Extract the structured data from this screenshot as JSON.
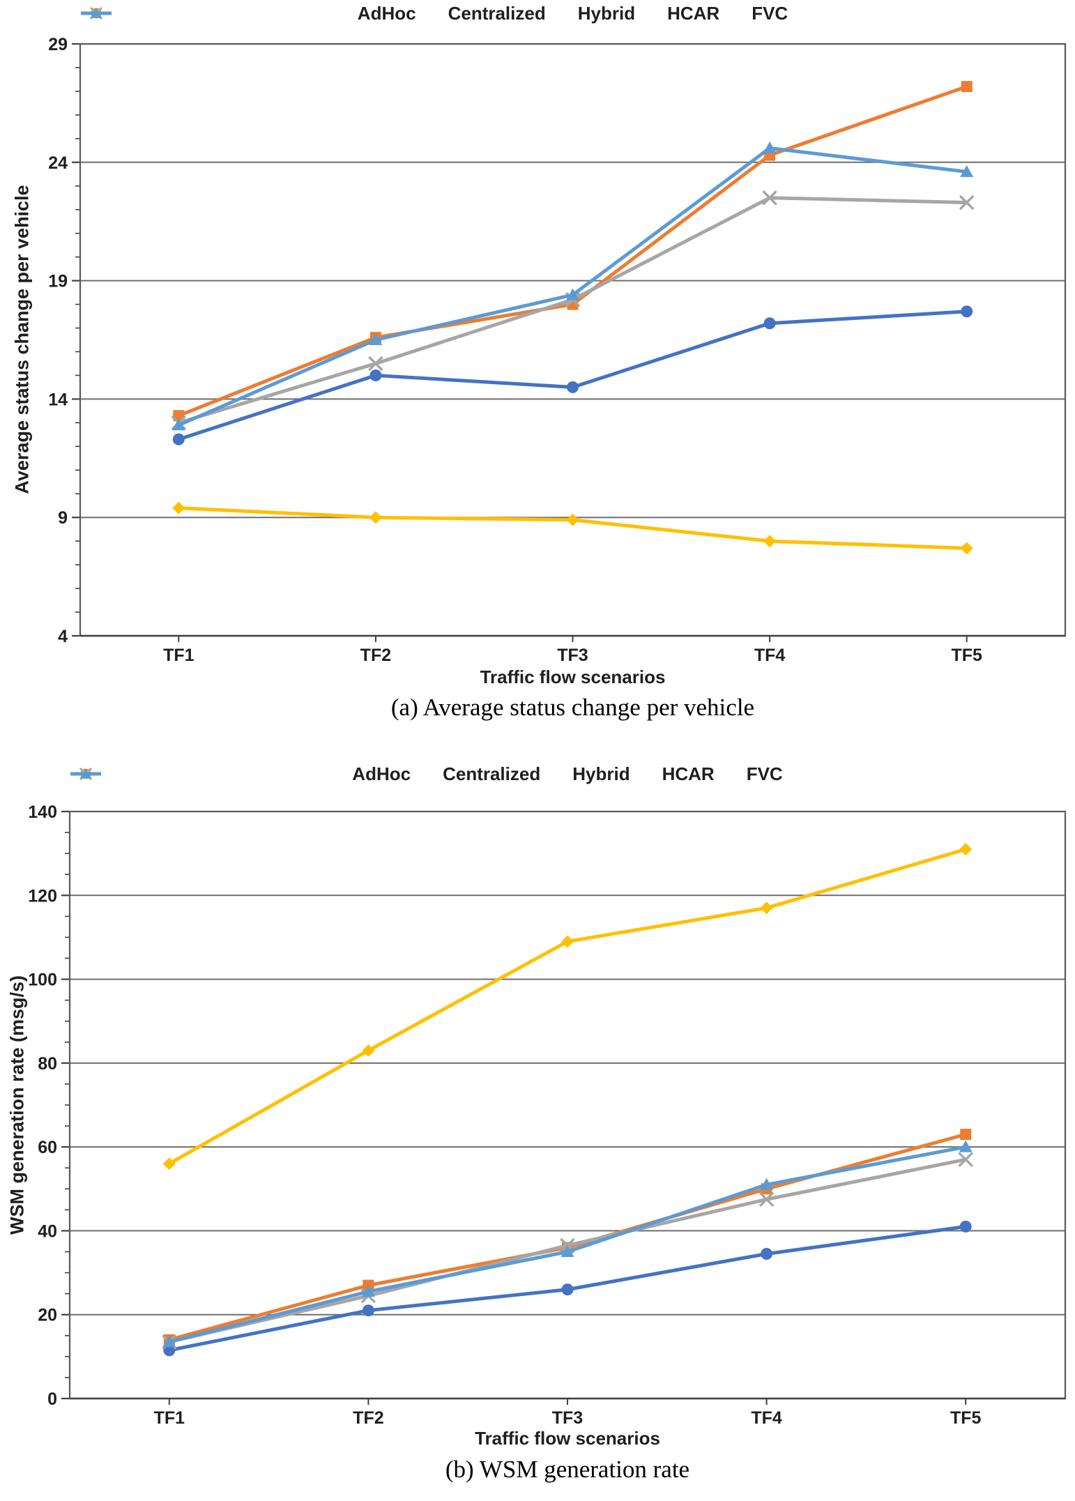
{
  "chart_data": [
    {
      "type": "line",
      "caption": "(a) Average status change per vehicle",
      "xlabel": "Traffic flow scenarios",
      "ylabel": "Average status change per vehicle",
      "categories": [
        "TF1",
        "TF2",
        "TF3",
        "TF4",
        "TF5"
      ],
      "ymin": 4,
      "ymax": 29,
      "ymajor": 5,
      "yminor": 1,
      "yticks": [
        4,
        9,
        14,
        19,
        24,
        29
      ],
      "grid": "horizontal-major",
      "legend_position": "top-center",
      "series": [
        {
          "name": "AdHoc",
          "color": "#4472C4",
          "marker": "circle",
          "values": [
            12.3,
            15.0,
            14.5,
            17.2,
            17.7
          ]
        },
        {
          "name": "Centralized",
          "color": "#ED7D31",
          "marker": "square",
          "values": [
            13.3,
            16.6,
            18.0,
            24.3,
            27.2
          ]
        },
        {
          "name": "Hybrid",
          "color": "#A6A6A6",
          "marker": "x",
          "values": [
            13.0,
            15.5,
            18.2,
            22.5,
            22.3
          ]
        },
        {
          "name": "HCAR",
          "color": "#FFC000",
          "marker": "diamond",
          "values": [
            9.4,
            9.0,
            8.9,
            8.0,
            7.7
          ]
        },
        {
          "name": "FVC",
          "color": "#5B9BD5",
          "marker": "triangle",
          "values": [
            12.9,
            16.5,
            18.4,
            24.6,
            23.6
          ]
        }
      ]
    },
    {
      "type": "line",
      "caption": "(b) WSM generation rate",
      "xlabel": "Traffic flow scenarios",
      "ylabel": "WSM generation rate (msg/s)",
      "categories": [
        "TF1",
        "TF2",
        "TF3",
        "TF4",
        "TF5"
      ],
      "ymin": 0,
      "ymax": 140,
      "ymajor": 20,
      "yminor": 5,
      "yticks": [
        0,
        20,
        40,
        60,
        80,
        100,
        120,
        140
      ],
      "grid": "horizontal-major",
      "legend_position": "top-center",
      "series": [
        {
          "name": "AdHoc",
          "color": "#4472C4",
          "marker": "circle",
          "values": [
            11.5,
            21.0,
            26.0,
            34.5,
            41.0
          ]
        },
        {
          "name": "Centralized",
          "color": "#ED7D31",
          "marker": "square",
          "values": [
            14.0,
            27.0,
            36.0,
            50.0,
            63.0
          ]
        },
        {
          "name": "Hybrid",
          "color": "#A6A6A6",
          "marker": "x",
          "values": [
            13.5,
            24.5,
            36.5,
            47.5,
            57.0
          ]
        },
        {
          "name": "HCAR",
          "color": "#FFC000",
          "marker": "diamond",
          "values": [
            56.0,
            83.0,
            109.0,
            117.0,
            131.0
          ]
        },
        {
          "name": "FVC",
          "color": "#5B9BD5",
          "marker": "triangle",
          "values": [
            13.5,
            25.5,
            35.0,
            51.0,
            60.0
          ]
        }
      ]
    }
  ],
  "colors": {
    "gridline": "#6e6e6e",
    "plot_border": "#595959",
    "axis": "#404040",
    "text": "#1f1f1f"
  }
}
